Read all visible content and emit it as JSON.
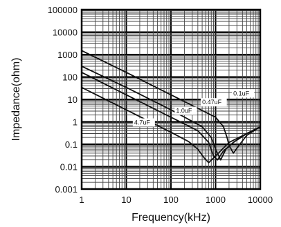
{
  "chart_data": {
    "type": "line",
    "xlabel": "Frequency(kHz)",
    "ylabel": "Impedance(ohm)",
    "x_scale": "log",
    "y_scale": "log",
    "xlim": [
      1,
      10000
    ],
    "ylim": [
      0.001,
      100000
    ],
    "grid": true,
    "x_ticks": [
      "1",
      "10",
      "100",
      "1000",
      "10000"
    ],
    "y_ticks": [
      "0.001",
      "0.01",
      "0.1",
      "1",
      "10",
      "100",
      "1000",
      "10000",
      "100000"
    ],
    "series": [
      {
        "name": "0.1uF",
        "x": [
          1,
          10,
          100,
          1000,
          1500,
          1800,
          2000,
          2500,
          3500,
          5000,
          10000
        ],
        "y": [
          1500,
          160,
          16,
          1.6,
          0.6,
          0.2,
          0.09,
          0.04,
          0.1,
          0.25,
          0.6
        ]
      },
      {
        "name": "0.47uF",
        "x": [
          1,
          10,
          100,
          500,
          800,
          1000,
          1300,
          1700,
          2500,
          5000,
          10000
        ],
        "y": [
          300,
          34,
          3.4,
          0.6,
          0.2,
          0.06,
          0.02,
          0.06,
          0.12,
          0.3,
          0.6
        ]
      },
      {
        "name": "1.0uF",
        "x": [
          1,
          10,
          100,
          400,
          700,
          900,
          1100,
          1500,
          2500,
          5000,
          10000
        ],
        "y": [
          160,
          16,
          1.6,
          0.4,
          0.12,
          0.03,
          0.02,
          0.05,
          0.12,
          0.3,
          0.6
        ]
      },
      {
        "name": "4.7uF",
        "x": [
          1,
          10,
          100,
          250,
          400,
          550,
          700,
          1000,
          2000,
          5000,
          10000
        ],
        "y": [
          34,
          3.4,
          0.34,
          0.13,
          0.06,
          0.025,
          0.015,
          0.03,
          0.12,
          0.3,
          0.6
        ]
      }
    ],
    "series_labels": [
      {
        "text": "0.1uF",
        "x": 2500,
        "y": 15
      },
      {
        "text": "0.47uF",
        "x": 500,
        "y": 6
      },
      {
        "text": "1.0uF",
        "x": 130,
        "y": 2.5
      },
      {
        "text": "4.7uF",
        "x": 15,
        "y": 0.75
      }
    ]
  }
}
